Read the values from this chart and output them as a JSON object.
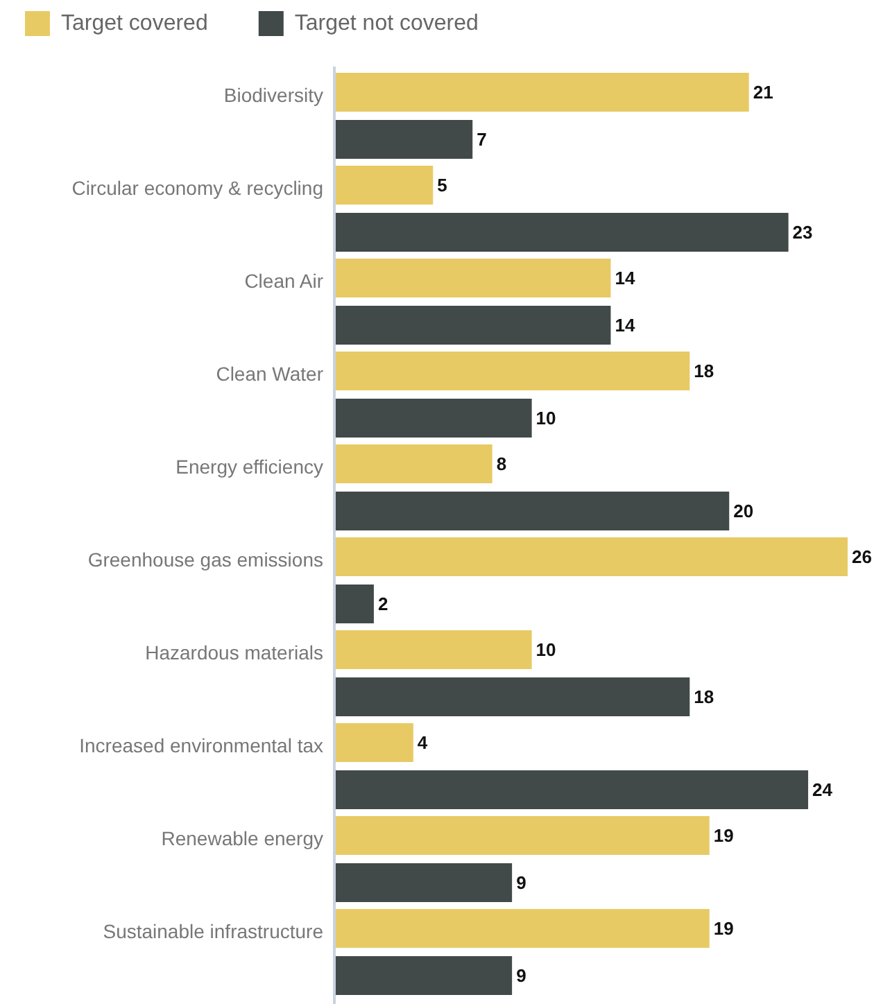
{
  "chart_data": {
    "type": "bar",
    "orientation": "horizontal",
    "categories": [
      "Biodiversity",
      "Circular economy & recycling",
      "Clean Air",
      "Clean Water",
      "Energy efficiency",
      "Greenhouse gas emissions",
      "Hazardous materials",
      "Increased environmental tax",
      "Renewable energy",
      "Sustainable infrastructure"
    ],
    "series": [
      {
        "name": "Target covered",
        "color": "#e8ca65",
        "values": [
          21,
          5,
          14,
          18,
          8,
          26,
          10,
          4,
          19,
          19
        ]
      },
      {
        "name": "Target not covered",
        "color": "#414949",
        "values": [
          7,
          23,
          14,
          10,
          20,
          2,
          18,
          24,
          9,
          9
        ]
      }
    ],
    "data_labels": true,
    "legend": "top left"
  }
}
